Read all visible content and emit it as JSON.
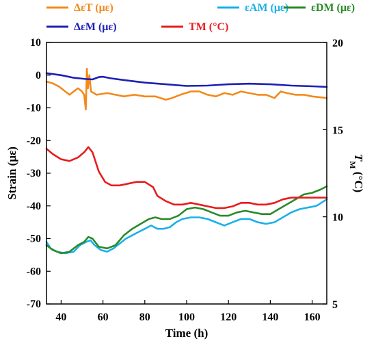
{
  "chart_data": {
    "type": "line",
    "xlabel": "Time (h)",
    "ylabel": "Strain (με)",
    "y2label": "T_M (°C)",
    "xlim": [
      33,
      167
    ],
    "ylim": [
      -70,
      10
    ],
    "y2lim": [
      5,
      20
    ],
    "xticks": [
      40,
      60,
      80,
      100,
      120,
      140,
      160
    ],
    "yticks": [
      -70,
      -60,
      -50,
      -40,
      -30,
      -20,
      -10,
      0,
      10
    ],
    "y2ticks": [
      5,
      10,
      15,
      20
    ],
    "legend_placement": "top, above plot",
    "series": [
      {
        "name": "ΔεT (με)",
        "color": "#f28a1c",
        "axis": "left",
        "points": [
          [
            33,
            -2
          ],
          [
            36,
            -2.5
          ],
          [
            39,
            -3.5
          ],
          [
            42,
            -5
          ],
          [
            44,
            -6
          ],
          [
            46,
            -5
          ],
          [
            48,
            -4
          ],
          [
            50,
            -5
          ],
          [
            51,
            -6
          ],
          [
            51.8,
            -10.5
          ],
          [
            52.3,
            2
          ],
          [
            52.8,
            -4
          ],
          [
            53.5,
            0
          ],
          [
            54.3,
            -5
          ],
          [
            57,
            -6
          ],
          [
            62,
            -5.5
          ],
          [
            66,
            -6
          ],
          [
            70,
            -6.5
          ],
          [
            75,
            -6
          ],
          [
            80,
            -6.5
          ],
          [
            85,
            -6.5
          ],
          [
            90,
            -7.5
          ],
          [
            93,
            -7
          ],
          [
            97,
            -6
          ],
          [
            102,
            -5
          ],
          [
            106,
            -5
          ],
          [
            110,
            -6
          ],
          [
            114,
            -6.5
          ],
          [
            118,
            -5.5
          ],
          [
            122,
            -6
          ],
          [
            126,
            -5
          ],
          [
            130,
            -5.5
          ],
          [
            134,
            -6
          ],
          [
            138,
            -6
          ],
          [
            142,
            -7
          ],
          [
            145,
            -5
          ],
          [
            148,
            -5.5
          ],
          [
            152,
            -6
          ],
          [
            156,
            -6
          ],
          [
            160,
            -6.5
          ],
          [
            167,
            -7
          ]
        ]
      },
      {
        "name": "εAM (με)",
        "color": "#1ab0e8",
        "axis": "left",
        "points": [
          [
            33,
            -51
          ],
          [
            35,
            -53
          ],
          [
            38,
            -54
          ],
          [
            42,
            -54.5
          ],
          [
            46,
            -54
          ],
          [
            49,
            -52
          ],
          [
            52,
            -51
          ],
          [
            54,
            -50.5
          ],
          [
            56,
            -52
          ],
          [
            59,
            -53.5
          ],
          [
            62,
            -54
          ],
          [
            65,
            -53
          ],
          [
            68,
            -51.5
          ],
          [
            71,
            -50
          ],
          [
            74,
            -49
          ],
          [
            77,
            -48
          ],
          [
            80,
            -47
          ],
          [
            83,
            -46
          ],
          [
            86,
            -47
          ],
          [
            89,
            -47
          ],
          [
            92,
            -46.5
          ],
          [
            95,
            -45
          ],
          [
            98,
            -44
          ],
          [
            102,
            -43.5
          ],
          [
            106,
            -43.5
          ],
          [
            110,
            -44
          ],
          [
            114,
            -45
          ],
          [
            118,
            -46
          ],
          [
            122,
            -45
          ],
          [
            126,
            -44
          ],
          [
            130,
            -44
          ],
          [
            134,
            -45
          ],
          [
            138,
            -45.5
          ],
          [
            142,
            -45
          ],
          [
            146,
            -43.5
          ],
          [
            150,
            -42
          ],
          [
            154,
            -41
          ],
          [
            158,
            -40.5
          ],
          [
            162,
            -40
          ],
          [
            167,
            -38
          ]
        ]
      },
      {
        "name": "εDM (με)",
        "color": "#2a8a2a",
        "axis": "left",
        "points": [
          [
            33,
            -52
          ],
          [
            36,
            -53.5
          ],
          [
            40,
            -54.5
          ],
          [
            44,
            -54
          ],
          [
            48,
            -52
          ],
          [
            51,
            -51
          ],
          [
            53,
            -49.5
          ],
          [
            55,
            -50
          ],
          [
            58,
            -52.5
          ],
          [
            62,
            -53
          ],
          [
            66,
            -52
          ],
          [
            70,
            -49
          ],
          [
            74,
            -47
          ],
          [
            78,
            -45.5
          ],
          [
            82,
            -44
          ],
          [
            85,
            -43.5
          ],
          [
            88,
            -44
          ],
          [
            92,
            -44
          ],
          [
            96,
            -43
          ],
          [
            100,
            -41
          ],
          [
            104,
            -40.5
          ],
          [
            108,
            -41
          ],
          [
            112,
            -42
          ],
          [
            116,
            -43
          ],
          [
            120,
            -43
          ],
          [
            124,
            -42
          ],
          [
            128,
            -41.5
          ],
          [
            132,
            -42
          ],
          [
            136,
            -42.5
          ],
          [
            140,
            -42.5
          ],
          [
            144,
            -41
          ],
          [
            148,
            -39.5
          ],
          [
            152,
            -38
          ],
          [
            156,
            -36.5
          ],
          [
            160,
            -36
          ],
          [
            164,
            -35
          ],
          [
            167,
            -34
          ]
        ]
      },
      {
        "name": "ΔεM (με)",
        "color": "#1f1fb5",
        "axis": "left",
        "points": [
          [
            33,
            0.6
          ],
          [
            40,
            0
          ],
          [
            46,
            -0.8
          ],
          [
            52,
            -1.2
          ],
          [
            55,
            -1.3
          ],
          [
            58,
            -0.6
          ],
          [
            60,
            -0.5
          ],
          [
            64,
            -1
          ],
          [
            70,
            -1.5
          ],
          [
            80,
            -2.3
          ],
          [
            90,
            -2.8
          ],
          [
            100,
            -3.3
          ],
          [
            110,
            -3.2
          ],
          [
            120,
            -2.8
          ],
          [
            130,
            -2.6
          ],
          [
            140,
            -2.8
          ],
          [
            150,
            -3.2
          ],
          [
            160,
            -3.4
          ],
          [
            167,
            -3.6
          ]
        ]
      },
      {
        "name": "TM (°C)",
        "color": "#e81c1c",
        "axis": "right",
        "points": [
          [
            33,
            13.9
          ],
          [
            36,
            13.6
          ],
          [
            40,
            13.3
          ],
          [
            44,
            13.2
          ],
          [
            48,
            13.4
          ],
          [
            51,
            13.7
          ],
          [
            53,
            14
          ],
          [
            55,
            13.7
          ],
          [
            58,
            12.6
          ],
          [
            61,
            12
          ],
          [
            64,
            11.8
          ],
          [
            68,
            11.8
          ],
          [
            72,
            11.9
          ],
          [
            76,
            12
          ],
          [
            80,
            12
          ],
          [
            84,
            11.7
          ],
          [
            86,
            11.2
          ],
          [
            90,
            10.9
          ],
          [
            94,
            10.7
          ],
          [
            98,
            10.7
          ],
          [
            102,
            10.8
          ],
          [
            106,
            10.7
          ],
          [
            110,
            10.6
          ],
          [
            114,
            10.5
          ],
          [
            118,
            10.5
          ],
          [
            122,
            10.6
          ],
          [
            126,
            10.8
          ],
          [
            130,
            10.8
          ],
          [
            134,
            10.7
          ],
          [
            138,
            10.7
          ],
          [
            142,
            10.8
          ],
          [
            146,
            11
          ],
          [
            150,
            11.1
          ],
          [
            154,
            11.1
          ],
          [
            158,
            11.1
          ],
          [
            162,
            11.1
          ],
          [
            167,
            11.1
          ]
        ]
      }
    ]
  }
}
